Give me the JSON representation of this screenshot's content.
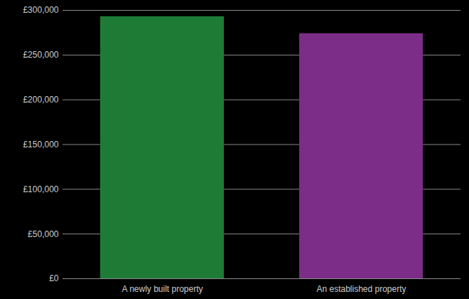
{
  "chart_data": {
    "type": "bar",
    "categories": [
      "A newly built property",
      "An established property"
    ],
    "values": [
      293000,
      274000
    ],
    "colors": [
      "#1e7b36",
      "#7b2d87"
    ],
    "ylim": [
      0,
      300000
    ],
    "yticks": [
      {
        "value": 0,
        "label": "£0"
      },
      {
        "value": 50000,
        "label": "£50,000"
      },
      {
        "value": 100000,
        "label": "£100,000"
      },
      {
        "value": 150000,
        "label": "£150,000"
      },
      {
        "value": 200000,
        "label": "£200,000"
      },
      {
        "value": 250000,
        "label": "£250,000"
      },
      {
        "value": 300000,
        "label": "£300,000"
      }
    ],
    "grid": true
  }
}
